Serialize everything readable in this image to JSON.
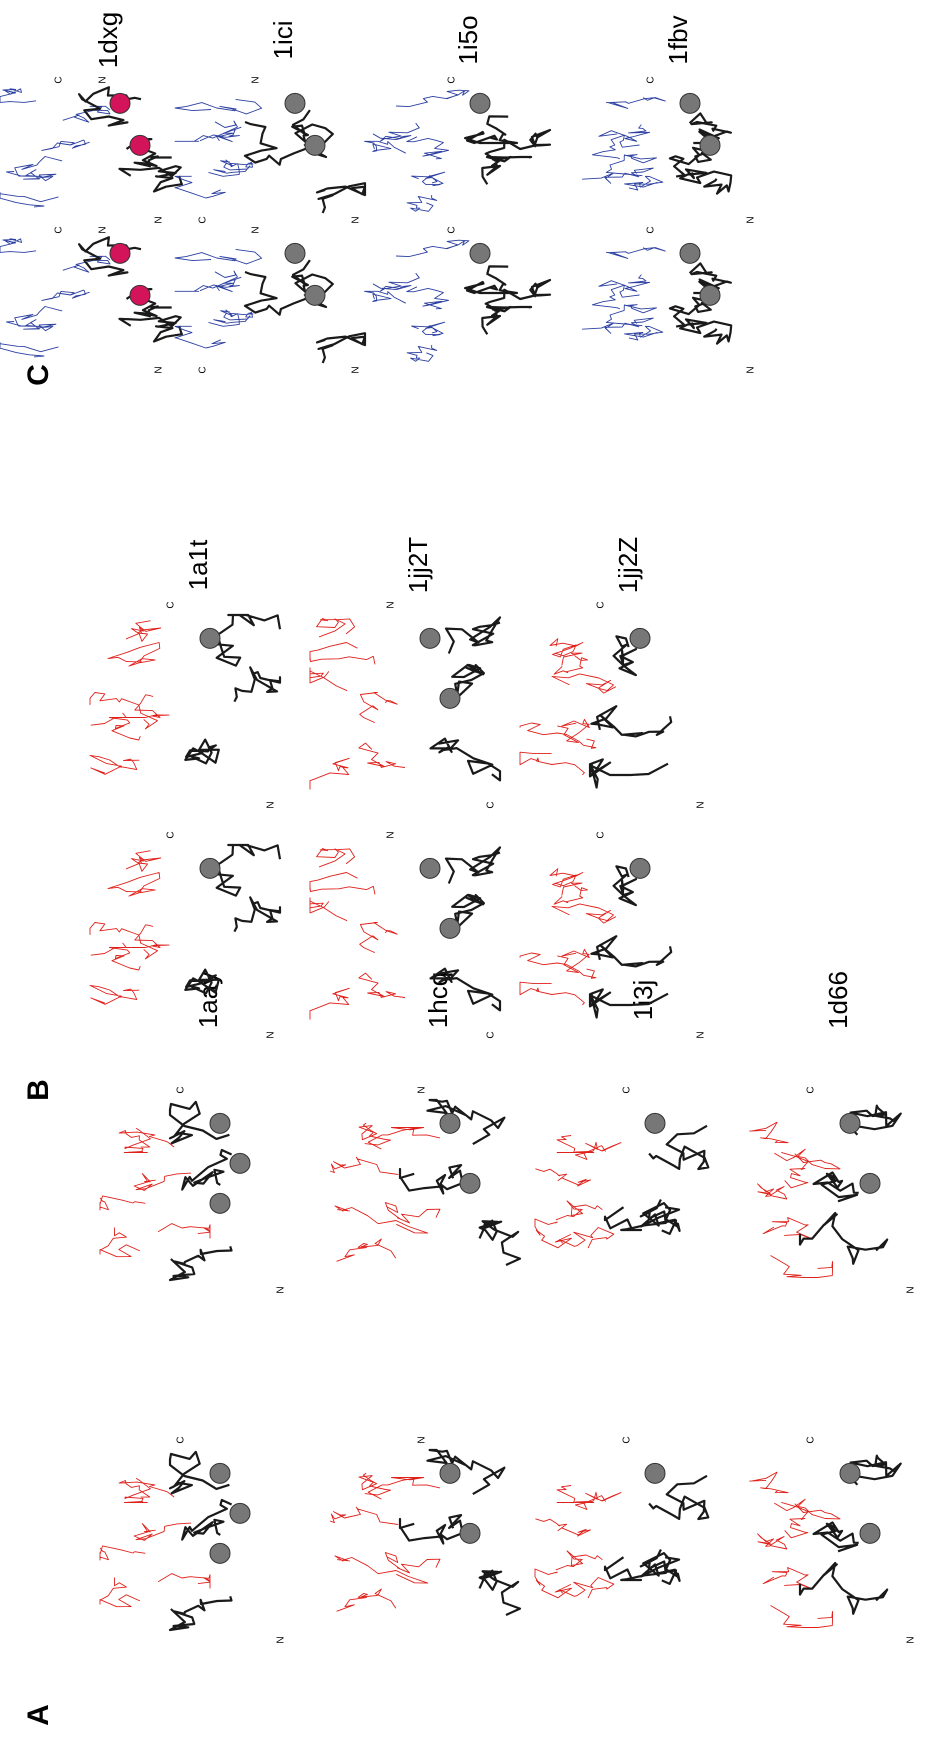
{
  "panels": [
    {
      "letter": "A",
      "structures": [
        {
          "label": "1aay",
          "termini": [
            "C",
            "N"
          ]
        },
        {
          "label": "1hcq",
          "termini": [
            "N"
          ]
        },
        {
          "label": "1i3j",
          "termini": [
            "C"
          ]
        },
        {
          "label": "1d66",
          "termini": [
            "C",
            "N"
          ]
        }
      ]
    },
    {
      "letter": "B",
      "structures": [
        {
          "label": "1a1t",
          "termini": [
            "C",
            "N"
          ]
        },
        {
          "label": "1jj2T",
          "termini": [
            "N",
            "C"
          ]
        },
        {
          "label": "1jj2Z",
          "termini": [
            "C",
            "N"
          ]
        }
      ]
    },
    {
      "letter": "C",
      "structures": [
        {
          "label": "1dxg",
          "termini": [
            "C",
            "N",
            "N",
            "C"
          ]
        },
        {
          "label": "1ici",
          "termini": [
            "N",
            "N"
          ]
        },
        {
          "label": "1i5o",
          "termini": [
            "C"
          ]
        },
        {
          "label": "1fbv",
          "termini": [
            "C",
            "N"
          ]
        }
      ]
    }
  ]
}
